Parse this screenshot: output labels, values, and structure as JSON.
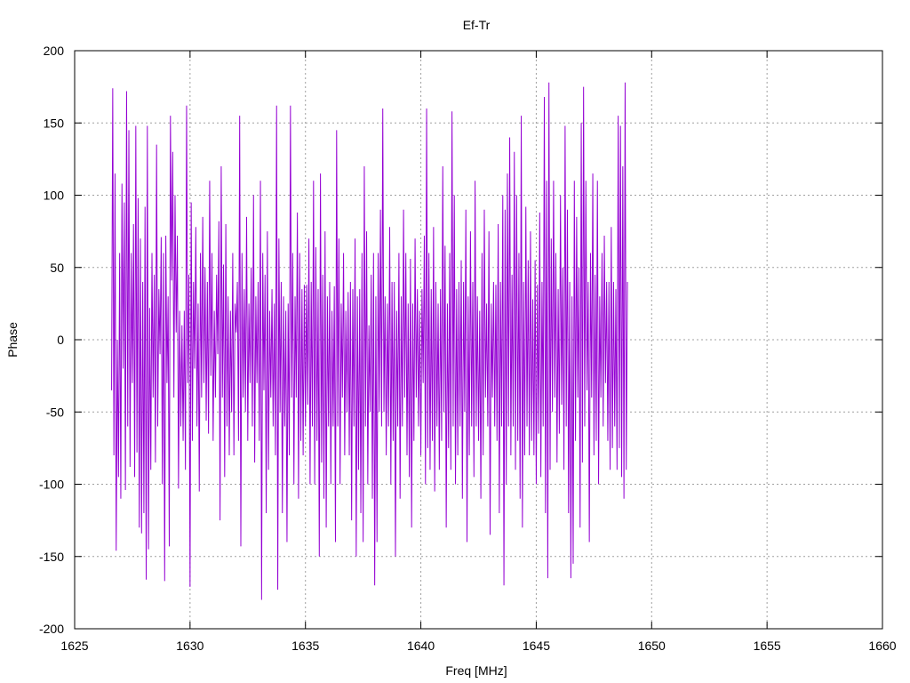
{
  "chart_data": {
    "type": "line",
    "title": "Ef-Tr",
    "xlabel": "Freq [MHz]",
    "ylabel": "Phase",
    "xlim": [
      1625,
      1660
    ],
    "ylim": [
      -200,
      200
    ],
    "x_ticks": [
      1625,
      1630,
      1635,
      1640,
      1645,
      1650,
      1655,
      1660
    ],
    "y_ticks": [
      -200,
      -150,
      -100,
      -50,
      0,
      50,
      100,
      150,
      200
    ],
    "grid": true,
    "grid_style": "dotted",
    "legend": "none",
    "series": [
      {
        "color": "#9400d3",
        "x_start": 1626.6,
        "x_step": 0.05,
        "values": [
          -35,
          174,
          -80,
          115,
          -146,
          0,
          -95,
          60,
          -110,
          108,
          -20,
          95,
          -104,
          172,
          -60,
          145,
          -88,
          60,
          -30,
          80,
          -95,
          148,
          -78,
          98,
          -130,
          70,
          -134,
          40,
          -120,
          92,
          -166,
          148,
          -145,
          22,
          -90,
          60,
          -40,
          45,
          -85,
          135,
          -60,
          35,
          -10,
          71,
          -100,
          60,
          -167,
          72,
          -30,
          30,
          -143,
          155,
          41,
          130,
          -40,
          100,
          5,
          72,
          -103,
          20,
          -60,
          10,
          -70,
          20,
          -90,
          162,
          -30,
          45,
          -171,
          95,
          -70,
          40,
          -20,
          78,
          -60,
          25,
          -105,
          60,
          -40,
          85,
          -30,
          50,
          -56,
          40,
          -65,
          110,
          -25,
          60,
          -70,
          20,
          -40,
          45,
          -10,
          82,
          -125,
          120,
          -40,
          52,
          -95,
          80,
          -60,
          30,
          -80,
          20,
          -50,
          60,
          -80,
          25,
          5,
          40,
          -70,
          155,
          -143,
          60,
          -40,
          35,
          -50,
          85,
          -70,
          25,
          -30,
          50,
          -60,
          100,
          -85,
          30,
          -30,
          40,
          -70,
          110,
          -180,
          60,
          -35,
          45,
          -120,
          75,
          -90,
          20,
          -40,
          35,
          -60,
          25,
          -80,
          162,
          -173,
          70,
          -50,
          40,
          -120,
          30,
          -60,
          20,
          -140,
          25,
          -80,
          162,
          -40,
          60,
          -100,
          30,
          -40,
          88,
          -110,
          60,
          -70,
          35,
          -80,
          38,
          -60,
          38,
          -45,
          70,
          -100,
          40,
          -60,
          110,
          -100,
          64,
          -70,
          35,
          -150,
          115,
          -85,
          45,
          -110,
          75,
          -130,
          30,
          -60,
          40,
          -100,
          20,
          -60,
          37,
          -140,
          145,
          -60,
          70,
          -100,
          25,
          -40,
          60,
          -80,
          20,
          -50,
          33,
          -80,
          40,
          -125,
          35,
          -60,
          70,
          -150,
          30,
          -90,
          35,
          -120,
          60,
          -140,
          120,
          -60,
          75,
          -100,
          10,
          -50,
          45,
          -110,
          60,
          -170,
          30,
          -140,
          60,
          -50,
          90,
          -60,
          160,
          -50,
          30,
          -80,
          25,
          -60,
          78,
          -100,
          40,
          -70,
          40,
          -150,
          20,
          -60,
          60,
          -110,
          30,
          -60,
          90,
          -40,
          60,
          -80,
          25,
          -95,
          56,
          -130,
          25,
          -70,
          70,
          -40,
          35,
          -60,
          20,
          -80,
          35,
          -30,
          72,
          -100,
          160,
          -75,
          60,
          -90,
          35,
          -70,
          78,
          -105,
          40,
          -60,
          25,
          -90,
          35,
          -70,
          120,
          -50,
          65,
          -130,
          25,
          -75,
          60,
          -90,
          158,
          -60,
          100,
          -100,
          35,
          -80,
          40,
          -60,
          55,
          -110,
          40,
          -50,
          90,
          -140,
          30,
          -80,
          75,
          -60,
          40,
          -95,
          110,
          -60,
          30,
          -70,
          20,
          -110,
          60,
          -80,
          90,
          -40,
          25,
          -60,
          75,
          -135,
          25,
          -40,
          40,
          -60,
          38,
          -70,
          80,
          -120,
          40,
          -60,
          100,
          -170,
          90,
          -100,
          115,
          -60,
          140,
          -80,
          45,
          -60,
          130,
          -90,
          100,
          -70,
          60,
          -110,
          155,
          -130,
          40,
          -80,
          92,
          -60,
          55,
          -80,
          75,
          -70,
          28,
          -80,
          55,
          -100,
          38,
          -65,
          88,
          -95,
          40,
          -60,
          168,
          -120,
          110,
          -165,
          178,
          -90,
          70,
          -50,
          110,
          -40,
          60,
          -85,
          35,
          -65,
          100,
          -45,
          50,
          -90,
          148,
          -60,
          90,
          -120,
          40,
          -165,
          30,
          -155,
          110,
          -70,
          85,
          -40,
          50,
          -130,
          150,
          -85,
          175,
          -60,
          110,
          -35,
          40,
          -140,
          60,
          -40,
          115,
          -80,
          45,
          -70,
          110,
          -100,
          30,
          -40,
          60,
          -60,
          72,
          -30,
          40,
          -70,
          40,
          -90,
          78,
          -75,
          40,
          -60,
          35,
          -90,
          155,
          -75,
          148,
          -95,
          120,
          -110,
          178,
          -90,
          40
        ]
      }
    ]
  }
}
